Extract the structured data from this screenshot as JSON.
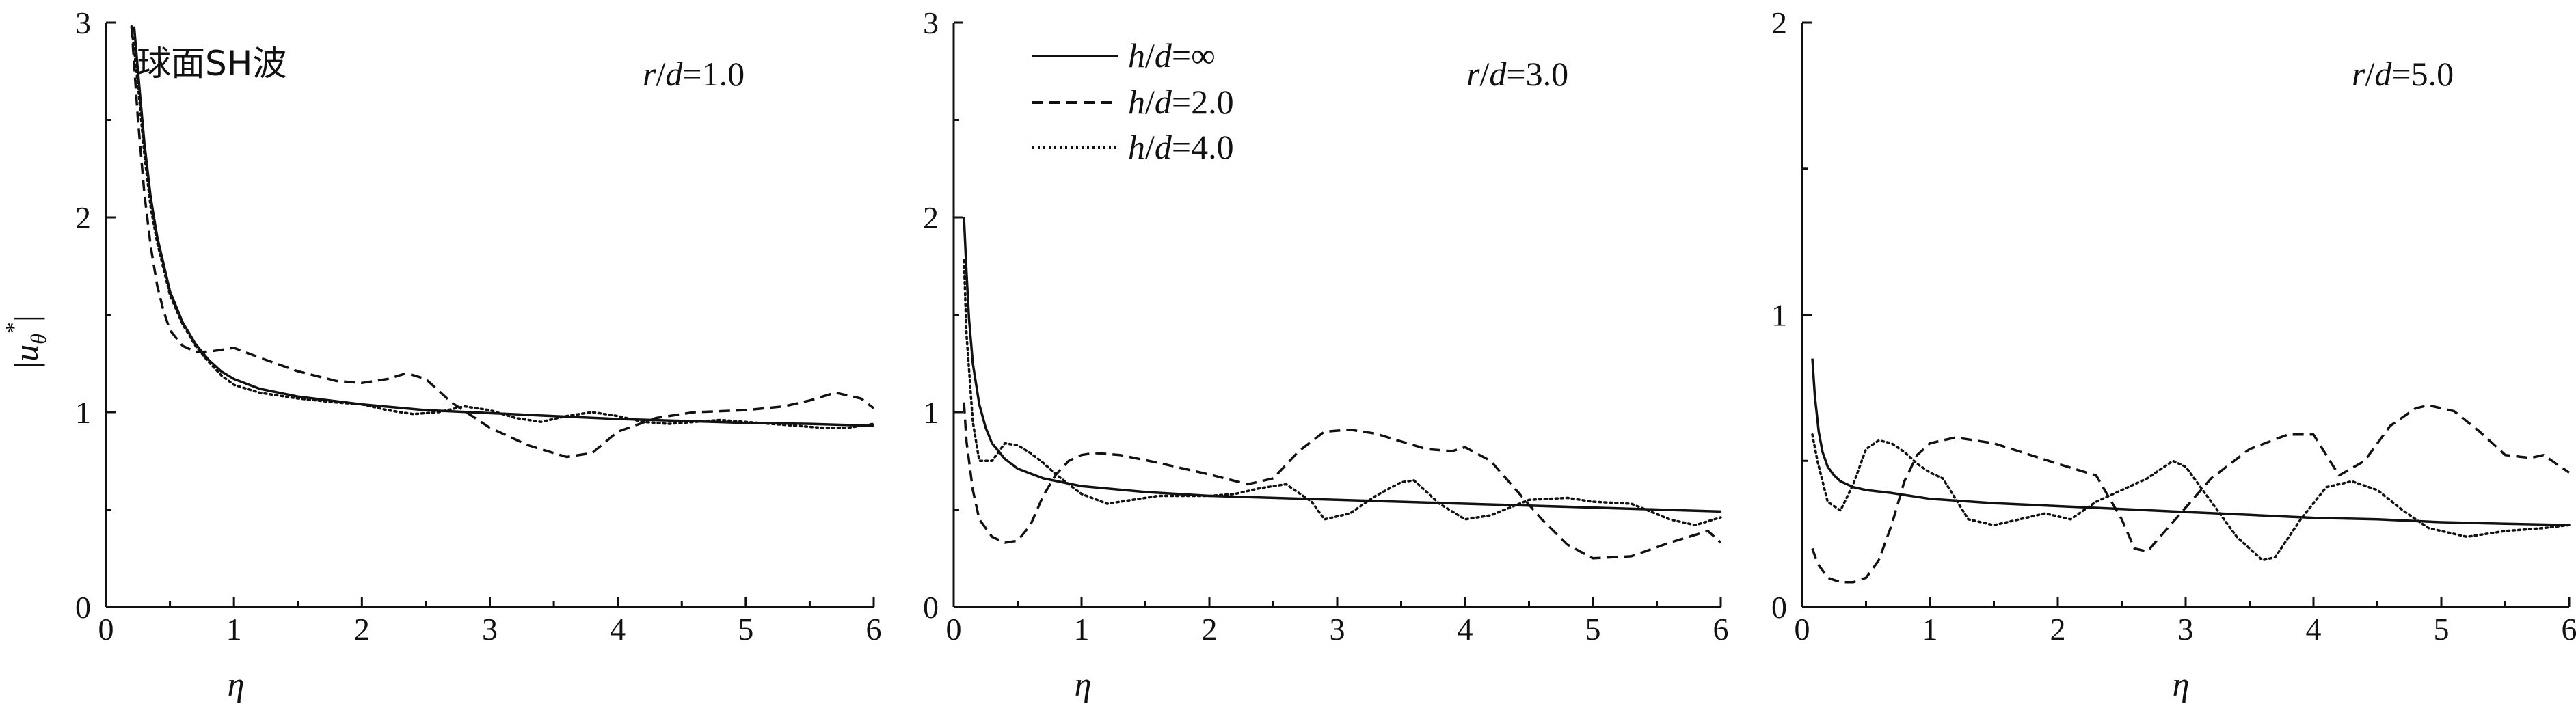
{
  "ylabel": "|uθ*|",
  "ylabel_parts": {
    "base": "u",
    "sub": "θ",
    "sup": "*"
  },
  "xlabel": "η",
  "legend_entries": [
    {
      "label": "h/d=∞",
      "parts": [
        "h",
        "/",
        "d",
        "=∞"
      ],
      "dash": "solid"
    },
    {
      "label": "h/d=2.0",
      "parts": [
        "h",
        "/",
        "d",
        "=2.0"
      ],
      "dash": "dashed"
    },
    {
      "label": "h/d=4.0",
      "parts": [
        "h",
        "/",
        "d",
        "=4.0"
      ],
      "dash": "dotted"
    }
  ],
  "chart_data": [
    {
      "type": "line",
      "annotation": "球面SH波",
      "subtitle": "r/d=1.0",
      "subtitle_parts": [
        "r",
        "/",
        "d",
        "=1.0"
      ],
      "xlim": [
        0,
        6
      ],
      "ylim": [
        0,
        3
      ],
      "xticks": [
        0,
        1,
        2,
        3,
        4,
        5,
        6
      ],
      "yticks": [
        0,
        1,
        2,
        3
      ],
      "grid": false,
      "series": [
        {
          "name": "h/d=∞",
          "dash": "solid",
          "x": [
            0.22,
            0.25,
            0.3,
            0.35,
            0.4,
            0.5,
            0.6,
            0.7,
            0.8,
            0.9,
            1.0,
            1.2,
            1.5,
            2.0,
            2.5,
            3.0,
            3.5,
            4.0,
            4.5,
            5.0,
            5.5,
            6.0
          ],
          "y": [
            2.98,
            2.75,
            2.38,
            2.1,
            1.9,
            1.62,
            1.46,
            1.35,
            1.27,
            1.21,
            1.17,
            1.12,
            1.08,
            1.04,
            1.01,
            0.995,
            0.98,
            0.965,
            0.955,
            0.945,
            0.94,
            0.93
          ]
        },
        {
          "name": "h/d=2.0",
          "dash": "dashed",
          "x": [
            0.2,
            0.25,
            0.3,
            0.35,
            0.4,
            0.45,
            0.5,
            0.6,
            0.7,
            0.8,
            0.9,
            1.0,
            1.2,
            1.5,
            1.8,
            2.0,
            2.2,
            2.35,
            2.5,
            2.7,
            3.0,
            3.3,
            3.6,
            3.8,
            4.0,
            4.3,
            4.6,
            5.0,
            5.3,
            5.5,
            5.7,
            5.9,
            6.0
          ],
          "y": [
            2.98,
            2.5,
            2.12,
            1.85,
            1.65,
            1.52,
            1.42,
            1.34,
            1.31,
            1.31,
            1.32,
            1.33,
            1.28,
            1.21,
            1.16,
            1.15,
            1.17,
            1.2,
            1.17,
            1.05,
            0.92,
            0.83,
            0.77,
            0.79,
            0.9,
            0.97,
            1.0,
            1.01,
            1.03,
            1.06,
            1.1,
            1.07,
            1.02
          ]
        },
        {
          "name": "h/d=4.0",
          "dash": "dotted",
          "x": [
            0.2,
            0.25,
            0.3,
            0.35,
            0.4,
            0.5,
            0.6,
            0.7,
            0.8,
            0.9,
            1.0,
            1.2,
            1.5,
            1.8,
            2.0,
            2.2,
            2.4,
            2.6,
            2.8,
            3.0,
            3.2,
            3.4,
            3.6,
            3.8,
            4.0,
            4.2,
            4.4,
            4.6,
            4.8,
            5.0,
            5.2,
            5.4,
            5.6,
            5.8,
            6.0
          ],
          "y": [
            2.98,
            2.68,
            2.32,
            2.05,
            1.87,
            1.6,
            1.45,
            1.34,
            1.26,
            1.19,
            1.14,
            1.1,
            1.07,
            1.05,
            1.04,
            1.01,
            0.99,
            1.0,
            1.03,
            1.01,
            0.97,
            0.95,
            0.98,
            1.0,
            0.98,
            0.95,
            0.94,
            0.95,
            0.96,
            0.95,
            0.94,
            0.93,
            0.92,
            0.92,
            0.94
          ]
        }
      ]
    },
    {
      "type": "line",
      "subtitle": "r/d=3.0",
      "subtitle_parts": [
        "r",
        "/",
        "d",
        "=3.0"
      ],
      "xlim": [
        0,
        6
      ],
      "ylim": [
        0,
        3
      ],
      "xticks": [
        0,
        1,
        2,
        3,
        4,
        5,
        6
      ],
      "yticks": [
        0,
        1,
        2,
        3
      ],
      "grid": false,
      "legend": "top-left",
      "series": [
        {
          "name": "h/d=∞",
          "dash": "solid",
          "x": [
            0.08,
            0.1,
            0.12,
            0.15,
            0.2,
            0.25,
            0.3,
            0.4,
            0.5,
            0.7,
            1.0,
            1.5,
            2.0,
            2.5,
            3.0,
            3.5,
            4.0,
            4.5,
            5.0,
            5.5,
            6.0
          ],
          "y": [
            2.0,
            1.72,
            1.48,
            1.25,
            1.04,
            0.92,
            0.84,
            0.76,
            0.71,
            0.66,
            0.62,
            0.59,
            0.57,
            0.56,
            0.55,
            0.54,
            0.53,
            0.52,
            0.51,
            0.5,
            0.49
          ]
        },
        {
          "name": "h/d=2.0",
          "dash": "dashed",
          "x": [
            0.08,
            0.1,
            0.15,
            0.2,
            0.3,
            0.4,
            0.5,
            0.6,
            0.7,
            0.8,
            0.9,
            1.0,
            1.1,
            1.3,
            1.6,
            2.0,
            2.3,
            2.5,
            2.7,
            2.9,
            3.1,
            3.3,
            3.5,
            3.7,
            3.9,
            4.0,
            4.2,
            4.4,
            4.6,
            4.8,
            5.0,
            5.3,
            5.6,
            5.9,
            6.0
          ],
          "y": [
            1.05,
            0.85,
            0.6,
            0.45,
            0.36,
            0.33,
            0.34,
            0.42,
            0.57,
            0.68,
            0.75,
            0.78,
            0.79,
            0.78,
            0.74,
            0.68,
            0.63,
            0.66,
            0.8,
            0.9,
            0.91,
            0.89,
            0.85,
            0.81,
            0.8,
            0.82,
            0.75,
            0.6,
            0.45,
            0.32,
            0.25,
            0.26,
            0.33,
            0.39,
            0.33
          ]
        },
        {
          "name": "h/d=4.0",
          "dash": "dotted",
          "x": [
            0.08,
            0.1,
            0.15,
            0.2,
            0.3,
            0.4,
            0.5,
            0.6,
            0.7,
            0.8,
            0.9,
            1.0,
            1.2,
            1.4,
            1.6,
            1.8,
            2.0,
            2.2,
            2.4,
            2.6,
            2.8,
            2.9,
            3.1,
            3.3,
            3.5,
            3.6,
            3.8,
            4.0,
            4.2,
            4.5,
            4.8,
            5.0,
            5.3,
            5.6,
            5.8,
            6.0
          ],
          "y": [
            1.78,
            1.4,
            0.95,
            0.75,
            0.75,
            0.84,
            0.83,
            0.79,
            0.74,
            0.68,
            0.63,
            0.58,
            0.53,
            0.55,
            0.57,
            0.57,
            0.57,
            0.58,
            0.61,
            0.63,
            0.54,
            0.45,
            0.48,
            0.57,
            0.64,
            0.65,
            0.53,
            0.45,
            0.47,
            0.55,
            0.56,
            0.54,
            0.53,
            0.45,
            0.42,
            0.46
          ]
        }
      ]
    },
    {
      "type": "line",
      "subtitle": "r/d=5.0",
      "subtitle_parts": [
        "r",
        "/",
        "d",
        "=5.0"
      ],
      "xlim": [
        0,
        6
      ],
      "ylim": [
        0,
        2
      ],
      "xticks": [
        0,
        1,
        2,
        3,
        4,
        5,
        6
      ],
      "yticks": [
        0,
        1,
        2
      ],
      "grid": false,
      "series": [
        {
          "name": "h/d=∞",
          "dash": "solid",
          "x": [
            0.08,
            0.1,
            0.13,
            0.16,
            0.2,
            0.25,
            0.3,
            0.4,
            0.5,
            0.7,
            1.0,
            1.5,
            2.0,
            2.5,
            3.0,
            3.5,
            4.0,
            4.5,
            5.0,
            5.5,
            6.0
          ],
          "y": [
            0.85,
            0.72,
            0.6,
            0.53,
            0.48,
            0.45,
            0.43,
            0.41,
            0.4,
            0.39,
            0.37,
            0.355,
            0.345,
            0.335,
            0.325,
            0.315,
            0.305,
            0.3,
            0.29,
            0.285,
            0.28
          ]
        },
        {
          "name": "h/d=2.0",
          "dash": "dashed",
          "x": [
            0.08,
            0.12,
            0.2,
            0.3,
            0.4,
            0.5,
            0.6,
            0.7,
            0.8,
            0.9,
            1.0,
            1.2,
            1.5,
            2.0,
            2.3,
            2.5,
            2.6,
            2.7,
            2.9,
            3.2,
            3.5,
            3.8,
            4.0,
            4.2,
            4.4,
            4.6,
            4.8,
            4.9,
            5.1,
            5.3,
            5.5,
            5.7,
            5.8,
            6.0
          ],
          "y": [
            0.2,
            0.15,
            0.1,
            0.085,
            0.085,
            0.1,
            0.16,
            0.28,
            0.43,
            0.52,
            0.56,
            0.58,
            0.56,
            0.49,
            0.45,
            0.3,
            0.2,
            0.19,
            0.29,
            0.44,
            0.54,
            0.59,
            0.59,
            0.45,
            0.5,
            0.62,
            0.68,
            0.69,
            0.67,
            0.6,
            0.52,
            0.51,
            0.52,
            0.46
          ]
        },
        {
          "name": "h/d=4.0",
          "dash": "dotted",
          "x": [
            0.08,
            0.12,
            0.2,
            0.3,
            0.4,
            0.5,
            0.6,
            0.7,
            0.8,
            0.9,
            1.0,
            1.1,
            1.2,
            1.3,
            1.5,
            1.7,
            1.9,
            2.1,
            2.3,
            2.5,
            2.7,
            2.9,
            3.0,
            3.2,
            3.4,
            3.6,
            3.7,
            3.9,
            4.1,
            4.3,
            4.5,
            4.7,
            4.9,
            5.0,
            5.2,
            5.5,
            5.8,
            6.0
          ],
          "y": [
            0.59,
            0.5,
            0.36,
            0.33,
            0.42,
            0.54,
            0.57,
            0.56,
            0.53,
            0.49,
            0.46,
            0.44,
            0.37,
            0.3,
            0.28,
            0.3,
            0.32,
            0.3,
            0.36,
            0.4,
            0.44,
            0.5,
            0.48,
            0.36,
            0.24,
            0.16,
            0.17,
            0.3,
            0.41,
            0.43,
            0.4,
            0.33,
            0.27,
            0.26,
            0.24,
            0.26,
            0.27,
            0.28
          ]
        }
      ]
    }
  ]
}
